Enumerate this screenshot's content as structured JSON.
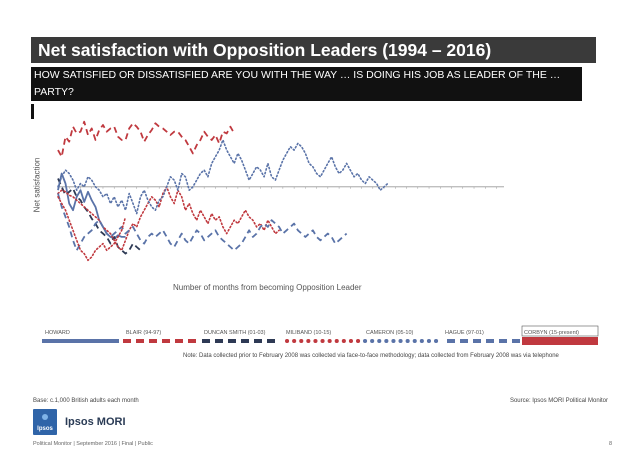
{
  "title": "Net satisfaction with Opposition Leaders (1994 – 2016)",
  "question": "HOW SATISFIED OR DISSATISFIED ARE YOU WITH THE WAY … IS DOING HIS JOB AS LEADER OF THE … PARTY?",
  "note": "Note: Data collected prior to February 2008 was collected via face-to-face methodology; data collected from February 2008 was via telephone",
  "base": "Base: c.1,000 British adults each month",
  "source": "Source: Ipsos MORI Political Monitor",
  "brand": "Ipsos MORI",
  "logo_text": "Ipsos",
  "footer": "Political Monitor | September 2016 | Final | Public",
  "page_number": "8",
  "chart_data": {
    "type": "line",
    "title": "Net satisfaction with Opposition Leaders (1994 – 2016)",
    "xlabel": "Number of months from becoming Opposition Leader",
    "ylabel": "Net satisfaction",
    "xlim": [
      1,
      120
    ],
    "ylim": [
      -45,
      40
    ],
    "grid": false,
    "legend_position": "bottom",
    "series": [
      {
        "name": "HOWARD",
        "color": "#5a73a8",
        "dash": "solid",
        "values": [
          -2,
          8,
          2,
          -10,
          -14,
          -6,
          -2,
          -9,
          -3,
          -8,
          -12,
          -20,
          -24,
          -28,
          -30,
          -31,
          -29,
          -30,
          -30
        ]
      },
      {
        "name": "BLAIR (94-97)",
        "color": "#c0393f",
        "dash": "long",
        "values": [
          22,
          18,
          30,
          27,
          36,
          32,
          33,
          39,
          31,
          35,
          28,
          34,
          37,
          33,
          35,
          36,
          30,
          28,
          28,
          35,
          38,
          36,
          33,
          27,
          31,
          34,
          38,
          36,
          35,
          33,
          31,
          33,
          33,
          30,
          28,
          24,
          20,
          25,
          28,
          33,
          30,
          28,
          31,
          26,
          33,
          32,
          36,
          32
        ]
      },
      {
        "name": "DUNCAN SMITH (01-03)",
        "color": "#2e3a55",
        "dash": "long",
        "values": [
          5,
          0,
          -5,
          -3,
          -1,
          -6,
          -8,
          -12,
          -15,
          -19,
          -22,
          -26,
          -28,
          -30,
          -34,
          -30,
          -36,
          -38,
          -40,
          -38,
          -34,
          -36,
          -38
        ]
      },
      {
        "name": "MILIBAND (10-15)",
        "color": "#c0393f",
        "dash": "dot",
        "values": [
          -4,
          -2,
          -3,
          -5,
          -6,
          -8,
          -10,
          -12,
          -14,
          -16,
          -18,
          -20,
          -24,
          -26,
          -28,
          -32,
          -36,
          -38,
          -32,
          -26,
          -22,
          -24,
          -18,
          -14,
          -10,
          -6,
          -8,
          -12,
          -4,
          0,
          -6,
          -10,
          -2,
          -6,
          -14,
          -10,
          -16,
          -20,
          -14,
          -18,
          -22,
          -16,
          -20,
          -18,
          -24,
          -28,
          -24,
          -20,
          -22,
          -18,
          -14,
          -18,
          -20,
          -24,
          -22,
          -26,
          -20,
          -24,
          -28,
          -26
        ]
      },
      {
        "name": "CAMERON (05-10)",
        "color": "#5a73a8",
        "dash": "dot",
        "values": [
          0,
          6,
          10,
          8,
          4,
          -2,
          2,
          0,
          6,
          4,
          0,
          -2,
          -6,
          -4,
          -10,
          -6,
          -12,
          -8,
          -14,
          -4,
          -10,
          -16,
          -6,
          -2,
          -8,
          -12,
          -14,
          -8,
          -6,
          0,
          6,
          4,
          -2,
          8,
          6,
          -2,
          0,
          4,
          8,
          10,
          6,
          14,
          18,
          22,
          28,
          22,
          18,
          14,
          20,
          16,
          10,
          4,
          8,
          12,
          10,
          6,
          14,
          6,
          4,
          10,
          16,
          20,
          24,
          22,
          26,
          24,
          20,
          14,
          12,
          8,
          6,
          10,
          14,
          18,
          12,
          8,
          10,
          14,
          10,
          6,
          8,
          4,
          2,
          6,
          4,
          2,
          -2,
          0,
          2
        ]
      },
      {
        "name": "HAGUE (97-01)",
        "color": "#5a73a8",
        "dash": "long",
        "values": [
          -4,
          -12,
          -18,
          -24,
          -32,
          -38,
          -34,
          -30,
          -28,
          -26,
          -22,
          -20,
          -24,
          -28,
          -30,
          -28,
          -26,
          -24,
          -28,
          -26,
          -24,
          -28,
          -32,
          -34,
          -30,
          -28,
          -30,
          -28,
          -26,
          -30,
          -34,
          -36,
          -32,
          -28,
          -32,
          -34,
          -30,
          -26,
          -28,
          -32,
          -30,
          -28,
          -26,
          -30,
          -32,
          -34,
          -36,
          -38,
          -36,
          -34,
          -30,
          -26,
          -30,
          -28,
          -24,
          -22,
          -24,
          -20,
          -22,
          -24,
          -28,
          -26,
          -24,
          -22,
          -26,
          -28,
          -30,
          -28,
          -26,
          -30,
          -32,
          -30,
          -28,
          -30,
          -34,
          -32,
          -30,
          -28
        ]
      },
      {
        "name": "CORBYN (15-present)",
        "color": "#c0393f",
        "dash": "dot",
        "values": [
          -6,
          -10,
          -14,
          -20,
          -26,
          -32,
          -38,
          -40,
          -44,
          -42,
          -38,
          -36,
          -34,
          -38,
          -36,
          -34,
          -30,
          -26,
          -18
        ]
      }
    ]
  }
}
